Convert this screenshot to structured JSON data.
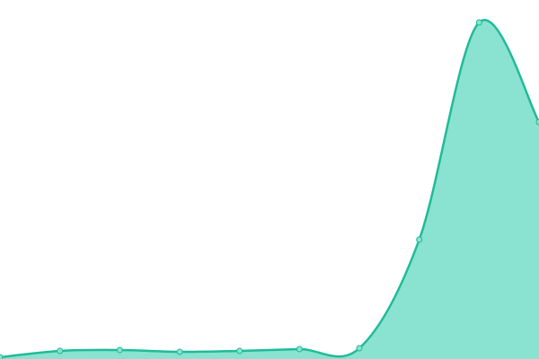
{
  "chart_data": {
    "type": "area",
    "categories": [
      null,
      null,
      null,
      null,
      null,
      null,
      null,
      null,
      null,
      null
    ],
    "values": [
      2,
      9,
      10,
      8,
      9,
      11,
      12,
      133,
      375,
      264
    ],
    "color": "#1fbb98",
    "fill": "#8ae2d0",
    "ylim": [
      0,
      400
    ]
  }
}
